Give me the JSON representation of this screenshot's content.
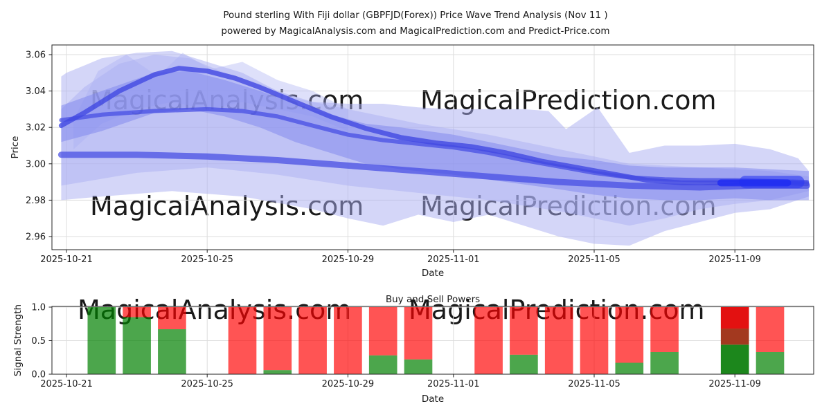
{
  "title": {
    "line1": "Pound sterling With Fiji dollar (GBPFJD(Forex)) Price Wave Trend Analysis (Nov 11 )",
    "line2": "powered by MagicalAnalysis.com and MagicalPrediction.com and Predict-Price.com"
  },
  "watermarks": {
    "analysis": "MagicalAnalysis.com",
    "prediction": "MagicalPrediction.com"
  },
  "colors": {
    "band_light": "#a9aef1",
    "band_mid": "#7d85ee",
    "trend_dark": "#4149e2",
    "highlight_blue": "#2c38f2",
    "highlight_core": "#1e2bf2",
    "sell_red": "#ff0000",
    "buy_green": "#008000",
    "strong_red": "#e31111",
    "overlap_brown": "#a3391f",
    "strong_green": "#1c871c",
    "grid": "#dddddd",
    "axis": "#222222",
    "watermark": "#e3e3e3"
  },
  "chart_data": [
    {
      "id": "price",
      "type": "band-line",
      "xlabel": "Date",
      "ylabel": "Price",
      "x_unit": "days since 2025-10-21",
      "xlim_days": [
        -0.41,
        21.28
      ],
      "ylim": [
        2.953,
        3.065
      ],
      "grid": true,
      "yticks": [
        {
          "label": "3.06",
          "value": 3.06
        },
        {
          "label": "3.04",
          "value": 3.04
        },
        {
          "label": "3.02",
          "value": 3.02
        },
        {
          "label": "3.00",
          "value": 3.0
        },
        {
          "label": "2.98",
          "value": 2.98
        },
        {
          "label": "2.96",
          "value": 2.96
        }
      ],
      "xticks": [
        {
          "label": "2025-10-21",
          "day": 0
        },
        {
          "label": "2025-10-25",
          "day": 4
        },
        {
          "label": "2025-10-29",
          "day": 8
        },
        {
          "label": "2025-11-01",
          "day": 11
        },
        {
          "label": "2025-11-05",
          "day": 15
        },
        {
          "label": "2025-11-09",
          "day": 19
        }
      ],
      "bands": [
        {
          "name": "outer-envelope",
          "color": "band_light",
          "opacity": 0.5,
          "upper": [
            [
              -0.15,
              3.048
            ],
            [
              0,
              3.05
            ],
            [
              1,
              3.058
            ],
            [
              2,
              3.061
            ],
            [
              3,
              3.062
            ],
            [
              4,
              3.056
            ],
            [
              5,
              3.05
            ],
            [
              6,
              3.04
            ],
            [
              7,
              3.034
            ],
            [
              8,
              3.033
            ],
            [
              9,
              3.033
            ],
            [
              10,
              3.031
            ],
            [
              11,
              3.03
            ],
            [
              12,
              3.03
            ],
            [
              13,
              3.03
            ],
            [
              13.7,
              3.029
            ],
            [
              14.2,
              3.019
            ],
            [
              15.1,
              3.031
            ],
            [
              16,
              3.006
            ],
            [
              17,
              3.01
            ],
            [
              18,
              3.01
            ],
            [
              19,
              3.011
            ],
            [
              20,
              3.008
            ],
            [
              20.8,
              3.003
            ],
            [
              21.1,
              2.996
            ]
          ],
          "lower": [
            [
              -0.15,
              2.98
            ],
            [
              1,
              2.982
            ],
            [
              3,
              2.985
            ],
            [
              5,
              2.982
            ],
            [
              7,
              2.975
            ],
            [
              8,
              2.97
            ],
            [
              9,
              2.966
            ],
            [
              10,
              2.972
            ],
            [
              11,
              2.968
            ],
            [
              12,
              2.972
            ],
            [
              13,
              2.966
            ],
            [
              14,
              2.96
            ],
            [
              15,
              2.956
            ],
            [
              16,
              2.955
            ],
            [
              17,
              2.963
            ],
            [
              18,
              2.968
            ],
            [
              19,
              2.973
            ],
            [
              20,
              2.975
            ],
            [
              21.1,
              2.982
            ]
          ]
        },
        {
          "name": "inner-envelope",
          "color": "band_light",
          "opacity": 0.45,
          "upper": [
            [
              -0.15,
              3.03
            ],
            [
              0.5,
              3.042
            ],
            [
              1.5,
              3.055
            ],
            [
              2.5,
              3.06
            ],
            [
              3.5,
              3.058
            ],
            [
              4.5,
              3.05
            ],
            [
              5.5,
              3.044
            ],
            [
              6.5,
              3.036
            ],
            [
              8,
              3.03
            ],
            [
              10,
              3.022
            ],
            [
              12,
              3.016
            ],
            [
              14,
              3.008
            ],
            [
              16,
              3.0
            ],
            [
              18,
              2.998
            ],
            [
              20,
              2.996
            ],
            [
              21.1,
              2.993
            ]
          ],
          "lower": [
            [
              -0.15,
              2.988
            ],
            [
              2,
              2.995
            ],
            [
              4,
              2.998
            ],
            [
              6,
              2.994
            ],
            [
              8,
              2.988
            ],
            [
              10,
              2.984
            ],
            [
              12,
              2.98
            ],
            [
              14,
              2.974
            ],
            [
              16,
              2.966
            ],
            [
              17,
              2.97
            ],
            [
              18,
              2.975
            ],
            [
              19,
              2.978
            ],
            [
              20,
              2.98
            ],
            [
              21.1,
              2.985
            ]
          ]
        },
        {
          "name": "peak-waves",
          "color": "band_light",
          "opacity": 0.38,
          "upper": [
            [
              0.2,
              3.024
            ],
            [
              0.9,
              3.051
            ],
            [
              1.7,
              3.06
            ],
            [
              2.6,
              3.048
            ],
            [
              3.3,
              3.061
            ],
            [
              4.1,
              3.052
            ],
            [
              5,
              3.056
            ],
            [
              6,
              3.046
            ],
            [
              7,
              3.04
            ],
            [
              8,
              3.03
            ]
          ],
          "lower": [
            [
              0.2,
              3.008
            ],
            [
              1,
              3.022
            ],
            [
              2,
              3.03
            ],
            [
              3,
              3.034
            ],
            [
              4,
              3.03
            ],
            [
              5,
              3.034
            ],
            [
              6,
              3.03
            ],
            [
              7,
              3.026
            ],
            [
              8,
              3.018
            ]
          ]
        },
        {
          "name": "core-channel",
          "color": "band_mid",
          "opacity": 0.5,
          "upper": [
            [
              -0.15,
              3.032
            ],
            [
              1,
              3.04
            ],
            [
              2.5,
              3.05
            ],
            [
              3.5,
              3.051
            ],
            [
              4.5,
              3.046
            ],
            [
              5.5,
              3.04
            ],
            [
              6.5,
              3.033
            ],
            [
              7.5,
              3.027
            ],
            [
              8.5,
              3.022
            ],
            [
              9.5,
              3.02
            ],
            [
              11,
              3.016
            ],
            [
              12.5,
              3.01
            ],
            [
              14,
              3.004
            ],
            [
              15,
              3.002
            ],
            [
              16,
              2.999
            ],
            [
              17,
              2.998
            ],
            [
              18,
              2.998
            ],
            [
              19,
              2.998
            ],
            [
              20,
              2.997
            ],
            [
              21.1,
              2.996
            ]
          ],
          "lower": [
            [
              -0.15,
              3.012
            ],
            [
              1,
              3.018
            ],
            [
              2.5,
              3.028
            ],
            [
              3.5,
              3.03
            ],
            [
              4.5,
              3.026
            ],
            [
              5.5,
              3.02
            ],
            [
              6.5,
              3.012
            ],
            [
              7.5,
              3.006
            ],
            [
              8.5,
              3.0
            ],
            [
              9.5,
              2.997
            ],
            [
              11,
              2.994
            ],
            [
              12.5,
              2.99
            ],
            [
              14,
              2.986
            ],
            [
              15,
              2.983
            ],
            [
              16,
              2.981
            ],
            [
              17,
              2.98
            ],
            [
              18,
              2.98
            ],
            [
              19,
              2.981
            ],
            [
              20,
              2.98
            ],
            [
              21.1,
              2.98
            ]
          ]
        }
      ],
      "lines": [
        {
          "name": "trend-main",
          "color": "trend_dark",
          "width": 7,
          "opacity": 0.8,
          "points": [
            [
              -0.15,
              3.021
            ],
            [
              0.5,
              3.028
            ],
            [
              1.5,
              3.04
            ],
            [
              2.5,
              3.049
            ],
            [
              3.2,
              3.0525
            ],
            [
              4,
              3.051
            ],
            [
              4.8,
              3.047
            ],
            [
              5.5,
              3.042
            ],
            [
              6.5,
              3.034
            ],
            [
              7.5,
              3.026
            ],
            [
              8.5,
              3.0195
            ],
            [
              9.5,
              3.0145
            ],
            [
              10.5,
              3.0115
            ],
            [
              11.5,
              3.0095
            ],
            [
              12.5,
              3.006
            ],
            [
              13.5,
              3.0015
            ],
            [
              14.5,
              2.998
            ],
            [
              15.5,
              2.9945
            ],
            [
              16.5,
              2.991
            ],
            [
              17.5,
              2.9895
            ],
            [
              18.5,
              2.9895
            ],
            [
              19.5,
              2.99
            ],
            [
              20.5,
              2.9895
            ],
            [
              21.05,
              2.989
            ]
          ]
        },
        {
          "name": "trend-upper",
          "color": "trend_dark",
          "width": 6,
          "opacity": 0.7,
          "points": [
            [
              -0.15,
              3.024
            ],
            [
              1,
              3.027
            ],
            [
              2.5,
              3.029
            ],
            [
              4,
              3.03
            ],
            [
              5,
              3.029
            ],
            [
              6,
              3.026
            ],
            [
              7,
              3.021
            ],
            [
              8,
              3.016
            ],
            [
              9,
              3.013
            ],
            [
              10,
              3.011
            ],
            [
              11,
              3.009
            ],
            [
              12,
              3.006
            ],
            [
              13,
              3.002
            ],
            [
              14,
              2.9985
            ],
            [
              15,
              2.995
            ],
            [
              16,
              2.9925
            ],
            [
              17,
              2.9915
            ],
            [
              18,
              2.991
            ],
            [
              19,
              2.991
            ],
            [
              20,
              2.9905
            ],
            [
              21.05,
              2.99
            ]
          ]
        },
        {
          "name": "trend-lower",
          "color": "trend_dark",
          "width": 9,
          "opacity": 0.7,
          "points": [
            [
              -0.15,
              3.005
            ],
            [
              2,
              3.005
            ],
            [
              4,
              3.004
            ],
            [
              6,
              3.002
            ],
            [
              8,
              2.999
            ],
            [
              10,
              2.996
            ],
            [
              12,
              2.993
            ],
            [
              14,
              2.99
            ],
            [
              16,
              2.988
            ],
            [
              18,
              2.987
            ],
            [
              19.5,
              2.988
            ],
            [
              21.05,
              2.988
            ]
          ]
        }
      ],
      "highlights": [
        {
          "name": "convergence-glow",
          "color": "highlight_blue",
          "width": 18,
          "opacity": 0.6,
          "points": [
            [
              19.3,
              2.99
            ],
            [
              20.8,
              2.99
            ]
          ]
        },
        {
          "name": "convergence-core",
          "color": "highlight_core",
          "width": 10,
          "opacity": 0.8,
          "points": [
            [
              18.6,
              2.9895
            ],
            [
              20.5,
              2.9895
            ]
          ]
        }
      ]
    },
    {
      "id": "power",
      "type": "stacked-bar",
      "title": "Buy and Sell Powers",
      "xlabel": "Date",
      "ylabel": "Signal Strength",
      "x_unit": "days since 2025-10-21",
      "xlim_days": [
        -0.41,
        21.28
      ],
      "ylim": [
        0,
        1.0
      ],
      "grid": true,
      "bar_width_days": 0.8,
      "yticks": [
        {
          "label": "1.0",
          "value": 1.0
        },
        {
          "label": "0.5",
          "value": 0.5
        },
        {
          "label": "0.0",
          "value": 0.0
        }
      ],
      "xticks": [
        {
          "label": "2025-10-21",
          "day": 0
        },
        {
          "label": "2025-10-25",
          "day": 4
        },
        {
          "label": "2025-10-29",
          "day": 8
        },
        {
          "label": "2025-11-01",
          "day": 11
        },
        {
          "label": "2025-11-05",
          "day": 15
        },
        {
          "label": "2025-11-09",
          "day": 19
        }
      ],
      "bars": [
        {
          "date": "2025-10-22",
          "buy": 1.0,
          "sell": 0.0
        },
        {
          "date": "2025-10-23",
          "buy": 0.85,
          "sell": 0.15
        },
        {
          "date": "2025-10-24",
          "buy": 0.67,
          "sell": 0.33
        },
        {
          "date": "2025-10-26",
          "buy": 0.0,
          "sell": 1.0
        },
        {
          "date": "2025-10-27",
          "buy": 0.06,
          "sell": 0.94
        },
        {
          "date": "2025-10-28",
          "buy": 0.0,
          "sell": 1.0
        },
        {
          "date": "2025-10-29",
          "buy": 0.0,
          "sell": 1.0
        },
        {
          "date": "2025-10-30",
          "buy": 0.28,
          "sell": 0.72
        },
        {
          "date": "2025-10-31",
          "buy": 0.22,
          "sell": 0.78
        },
        {
          "date": "2025-11-02",
          "buy": 0.0,
          "sell": 1.0
        },
        {
          "date": "2025-11-03",
          "buy": 0.29,
          "sell": 0.71
        },
        {
          "date": "2025-11-04",
          "buy": 0.0,
          "sell": 1.0
        },
        {
          "date": "2025-11-05",
          "buy": 0.0,
          "sell": 1.0
        },
        {
          "date": "2025-11-06",
          "buy": 0.17,
          "sell": 0.83
        },
        {
          "date": "2025-11-07",
          "buy": 0.33,
          "sell": 0.67
        },
        {
          "date": "2025-11-09",
          "buy": 0.44,
          "sell": 0.56,
          "segments": [
            {
              "from": 0.0,
              "to": 0.44,
              "color": "strong_green"
            },
            {
              "from": 0.44,
              "to": 0.68,
              "color": "overlap_brown"
            },
            {
              "from": 0.68,
              "to": 1.0,
              "color": "strong_red"
            }
          ]
        },
        {
          "date": "2025-11-10",
          "buy": 0.33,
          "sell": 0.67
        }
      ]
    }
  ]
}
